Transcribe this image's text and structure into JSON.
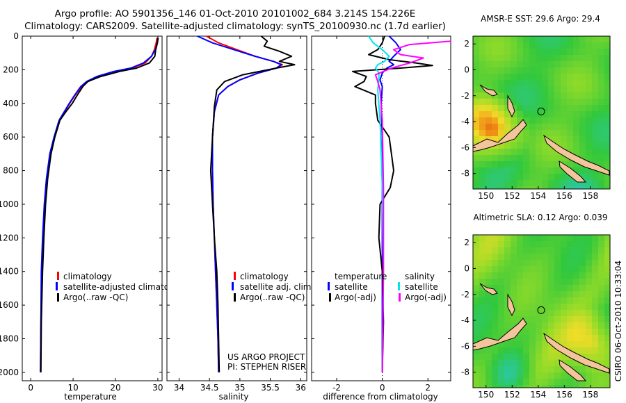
{
  "header": {
    "line1": "Argo profile: AO 5901356_146 01-Oct-2010 20101002_684 3.214S 154.226E",
    "line2": "Climatology: CARS2009. Satellite-adjusted climatology: synTS_20100930.nc (1.7d earlier)"
  },
  "credit": {
    "project": "US ARGO PROJECT",
    "pi": "PI: STEPHEN RISER",
    "csiro": "CSIRO 06-Oct-2010 10:33:04"
  },
  "colors": {
    "climatology": "#ff0000",
    "satellite": "#0000ff",
    "argo": "#000000",
    "sal_satellite": "#00e5ee",
    "sal_argo": "#ff00ff",
    "land": "#f4c49c"
  },
  "chart_data": [
    {
      "type": "line",
      "xlabel": "temperature",
      "ylabel": "",
      "xlim": [
        -2,
        31
      ],
      "ylim": [
        2050,
        0
      ],
      "y_reversed": true,
      "xticks": [
        0,
        10,
        20,
        30
      ],
      "yticks": [
        0,
        200,
        400,
        600,
        800,
        1000,
        1200,
        1400,
        1600,
        1800,
        2000
      ],
      "legend": [
        "climatology",
        "satellite-adjusted climatology",
        "Argo(..raw -QC)"
      ],
      "legend_placement": "lower-right",
      "series": [
        {
          "name": "climatology",
          "color": "#ff0000",
          "x": [
            29.8,
            29.6,
            29.2,
            28.5,
            27.0,
            24.0,
            20.0,
            16.0,
            13.5,
            12.0,
            10.5,
            9.2,
            8.0,
            6.8,
            5.6,
            4.6,
            3.8,
            3.3,
            2.9,
            2.6,
            2.4,
            2.3
          ],
          "y": [
            10,
            40,
            80,
            120,
            160,
            190,
            210,
            240,
            270,
            300,
            350,
            400,
            450,
            500,
            600,
            700,
            850,
            1000,
            1200,
            1400,
            1700,
            2000
          ]
        },
        {
          "name": "satellite-adjusted climatology",
          "color": "#0000ff",
          "x": [
            30.1,
            29.9,
            29.4,
            28.5,
            26.6,
            23.6,
            19.6,
            15.6,
            13.2,
            11.8,
            10.4,
            9.1,
            7.9,
            6.7,
            5.5,
            4.5,
            3.7,
            3.2,
            2.8,
            2.5,
            2.4,
            2.3
          ],
          "y": [
            10,
            40,
            80,
            120,
            160,
            190,
            210,
            240,
            270,
            300,
            350,
            400,
            450,
            500,
            600,
            700,
            850,
            1000,
            1200,
            1400,
            1700,
            2000
          ]
        },
        {
          "name": "Argo(..raw -QC)",
          "color": "#000000",
          "x": [
            30.0,
            29.9,
            29.5,
            29.3,
            28.0,
            25.0,
            21.0,
            16.5,
            13.5,
            12.3,
            11.0,
            9.8,
            8.3,
            6.9,
            5.7,
            4.8,
            4.0,
            3.5,
            3.1,
            2.8,
            2.5,
            2.4
          ],
          "y": [
            10,
            40,
            80,
            120,
            160,
            190,
            210,
            240,
            270,
            300,
            350,
            400,
            450,
            500,
            600,
            700,
            850,
            1000,
            1200,
            1400,
            1700,
            2000
          ]
        }
      ]
    },
    {
      "type": "line",
      "xlabel": "salinity",
      "ylabel": "",
      "xlim": [
        33.8,
        36.1
      ],
      "ylim": [
        2050,
        0
      ],
      "y_reversed": true,
      "xticks": [
        34,
        34.5,
        35,
        35.5,
        36
      ],
      "legend": [
        "climatology",
        "satellite adj. clim.",
        "Argo(..raw -QC)"
      ],
      "legend_placement": "lower-right",
      "series": [
        {
          "name": "climatology",
          "color": "#ff0000",
          "x": [
            34.45,
            34.65,
            34.95,
            35.25,
            35.55,
            35.7,
            35.6,
            35.3,
            35.0,
            34.8,
            34.65,
            34.58,
            34.55,
            34.55,
            34.56,
            34.58,
            34.6,
            34.62,
            34.64,
            34.65
          ],
          "y": [
            0,
            40,
            80,
            120,
            150,
            170,
            190,
            220,
            260,
            300,
            350,
            450,
            600,
            800,
            1000,
            1200,
            1400,
            1600,
            1800,
            2000
          ]
        },
        {
          "name": "satellite adj. clim.",
          "color": "#0000ff",
          "x": [
            34.3,
            34.55,
            34.9,
            35.25,
            35.55,
            35.68,
            35.6,
            35.3,
            35.0,
            34.8,
            34.65,
            34.58,
            34.55,
            34.55,
            34.56,
            34.58,
            34.6,
            34.62,
            34.64,
            34.65
          ],
          "y": [
            0,
            40,
            80,
            120,
            150,
            170,
            190,
            220,
            260,
            300,
            350,
            450,
            600,
            800,
            1000,
            1200,
            1400,
            1600,
            1800,
            2000
          ]
        },
        {
          "name": "Argo(..raw -QC)",
          "color": "#000000",
          "x": [
            35.35,
            35.45,
            35.4,
            35.65,
            35.85,
            35.65,
            35.9,
            35.6,
            35.05,
            34.75,
            34.62,
            34.58,
            34.55,
            34.52,
            34.55,
            34.58,
            34.62,
            34.64,
            34.65,
            34.66
          ],
          "y": [
            0,
            30,
            60,
            90,
            120,
            150,
            170,
            190,
            230,
            270,
            320,
            420,
            600,
            800,
            1000,
            1200,
            1400,
            1600,
            1800,
            2000
          ]
        }
      ]
    },
    {
      "type": "line",
      "xlabel": "difference from climatology",
      "ylabel": "",
      "xlim": [
        -3.1,
        3.0
      ],
      "ylim": [
        2050,
        0
      ],
      "y_reversed": true,
      "xticks": [
        -2,
        0,
        2
      ],
      "legend": [
        "temperature",
        "satellite",
        "Argo(-adj)",
        "salinity",
        "satellite",
        "Argo(-adj)"
      ],
      "legend_placement": "lower-center",
      "series": [
        {
          "name": "satellite",
          "group": "temperature",
          "color": "#0000ff",
          "x": [
            0.3,
            0.6,
            0.8,
            0.5,
            0.3,
            0.5,
            0.2,
            0.0,
            -0.1,
            0.0,
            -0.05,
            0.0,
            0.0,
            0.0,
            0.0
          ],
          "y": [
            0,
            40,
            80,
            120,
            150,
            170,
            190,
            220,
            260,
            300,
            400,
            600,
            1000,
            1500,
            2000
          ]
        },
        {
          "name": "Argo(-adj)",
          "group": "temperature",
          "color": "#000000",
          "x": [
            0.1,
            0.0,
            -0.2,
            -0.6,
            0.3,
            1.5,
            2.2,
            0.8,
            -1.3,
            -0.7,
            -0.8,
            -1.2,
            -0.3,
            -0.3,
            -0.2,
            0.3,
            0.4,
            0.5,
            0.35,
            -0.1,
            -0.15,
            0.0,
            0.05,
            0.0
          ],
          "y": [
            0,
            40,
            80,
            110,
            140,
            160,
            175,
            190,
            210,
            240,
            270,
            300,
            350,
            400,
            500,
            600,
            700,
            800,
            900,
            1000,
            1200,
            1400,
            1700,
            2000
          ]
        },
        {
          "name": "satellite",
          "group": "salinity",
          "color": "#00e5ee",
          "x": [
            -0.6,
            -0.4,
            0.0,
            0.3,
            0.1,
            -0.2,
            -0.3,
            -0.15,
            -0.15,
            -0.2,
            -0.1,
            0.0,
            0.05,
            0.0
          ],
          "y": [
            0,
            40,
            80,
            120,
            150,
            170,
            190,
            220,
            260,
            320,
            500,
            900,
            1400,
            2000
          ]
        },
        {
          "name": "Argo(-adj)",
          "group": "salinity",
          "color": "#ff00ff",
          "x": [
            3.0,
            1.2,
            0.5,
            0.8,
            1.8,
            1.2,
            0.4,
            -0.3,
            -0.2,
            -0.1,
            0.0,
            0.05,
            0.05,
            0.0
          ],
          "y": [
            30,
            50,
            80,
            110,
            130,
            160,
            190,
            230,
            270,
            320,
            500,
            900,
            1400,
            2000
          ]
        }
      ]
    },
    {
      "type": "heatmap",
      "title": "AMSR-E SST: 29.6 Argo: 29.4",
      "xlim": [
        149,
        159.5
      ],
      "ylim": [
        -9.2,
        2.6
      ],
      "xticks": [
        150,
        152,
        154,
        156,
        158
      ],
      "yticks": [
        2,
        0,
        -2,
        -4,
        -6,
        -8
      ],
      "float_position": [
        154.226,
        -3.214
      ]
    },
    {
      "type": "heatmap",
      "title": "Altimetric SLA: 0.12 Argo: 0.039",
      "xlim": [
        149,
        159.5
      ],
      "ylim": [
        -9.2,
        2.6
      ],
      "xticks": [
        150,
        152,
        154,
        156,
        158
      ],
      "yticks": [
        2,
        0,
        -2,
        -4,
        -6,
        -8
      ],
      "float_position": [
        154.226,
        -3.214
      ]
    }
  ]
}
